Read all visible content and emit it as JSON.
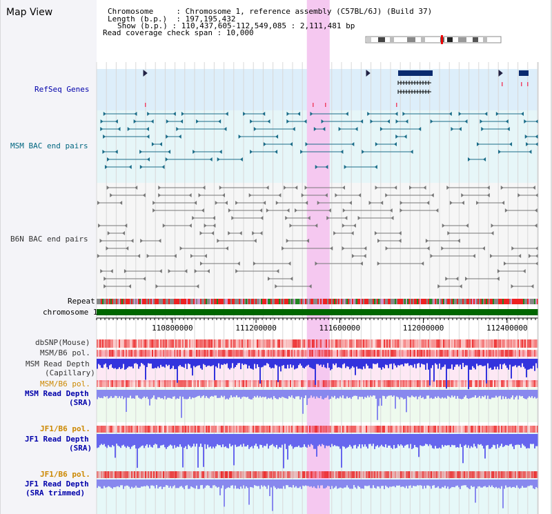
{
  "page": {
    "title": "Map View"
  },
  "header": {
    "chromosome_label": "Chromosome",
    "chromosome_value": "Chromosome 1, reference assembly (C57BL/6J) (Build 37)",
    "length_label": "Length (b.p.)",
    "length_value": "197,195,432",
    "show_label": "Show (b.p.)",
    "show_value": "110,437,605-112,549,085 : 2,111,481 bp",
    "coverage_label": "Read coverage check span",
    "coverage_value": "10,000"
  },
  "tracks": {
    "refseq": {
      "label": "RefSeq Genes"
    },
    "msm_bac": {
      "label": "MSM BAC end pairs"
    },
    "b6n_bac": {
      "label": "B6N BAC end pairs"
    },
    "repeat": {
      "label": "Repeat"
    },
    "chromosome": {
      "label": "chromosome 1"
    },
    "dbsnp": {
      "label": "dbSNP(Mouse)"
    },
    "msm_pol": {
      "label": "MSM/B6 pol."
    },
    "msm_depth_cap": {
      "label_1": "MSM Read Depth",
      "label_2": "(Capillary)"
    },
    "msm_pol_sra": {
      "label": "MSM/B6 pol."
    },
    "msm_depth_sra": {
      "label_1": "MSM Read Depth",
      "label_2": "(SRA)"
    },
    "jf1_pol": {
      "label": "JF1/B6 pol."
    },
    "jf1_depth": {
      "label_1": "JF1 Read Depth",
      "label_2": "(SRA)"
    },
    "jf1_pol_trim": {
      "label": "JF1/B6 pol."
    },
    "jf1_depth_trim": {
      "label_1": "JF1 Read Depth",
      "label_2": "(SRA trimmed)"
    }
  },
  "axis": {
    "ticks": [
      "110800000",
      "111200000",
      "111600000",
      "112000000",
      "112400000"
    ],
    "tick_values": [
      110800000,
      111200000,
      111600000,
      112000000,
      112400000
    ],
    "range_start": 110437605,
    "range_end": 112549085
  },
  "highlight": {
    "start": 111443000,
    "end": 111552000
  },
  "colors": {
    "refseq_label": "#0000aa",
    "msm_label": "#006680",
    "b6n_label": "#333333",
    "pol_orange": "#cc8800",
    "depth_label": "#0000aa",
    "highlight": "#f5c8f0",
    "chrom_bar": "#006600"
  }
}
